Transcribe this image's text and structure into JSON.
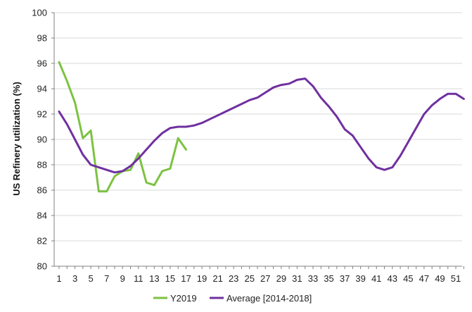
{
  "chart_data": {
    "type": "line",
    "title": "",
    "xlabel": "",
    "ylabel": "US Refinery utilization (%)",
    "ylim": [
      80,
      100
    ],
    "yticks": [
      "80",
      "82",
      "84",
      "86",
      "88",
      "90",
      "92",
      "94",
      "96",
      "98",
      "100"
    ],
    "xlim": [
      1,
      52
    ],
    "xticks": [
      "1",
      "3",
      "5",
      "7",
      "9",
      "11",
      "13",
      "15",
      "17",
      "19",
      "21",
      "23",
      "25",
      "27",
      "29",
      "31",
      "33",
      "35",
      "37",
      "39",
      "41",
      "43",
      "45",
      "47",
      "49",
      "51"
    ],
    "grid": "horizontal",
    "legend_position": "bottom",
    "series": [
      {
        "name": "Y2019",
        "color": "#7dc242",
        "x": [
          1,
          2,
          3,
          4,
          5,
          6,
          7,
          8,
          9,
          10,
          11,
          12,
          13,
          14,
          15,
          16,
          17
        ],
        "values": [
          96.1,
          94.6,
          92.9,
          90.1,
          90.7,
          85.9,
          85.9,
          87.1,
          87.5,
          87.6,
          88.9,
          86.6,
          86.4,
          87.5,
          87.7,
          90.1,
          89.2
        ]
      },
      {
        "name": "Average [2014-2018]",
        "color": "#7030a0",
        "x": [
          1,
          2,
          3,
          4,
          5,
          6,
          7,
          8,
          9,
          10,
          11,
          12,
          13,
          14,
          15,
          16,
          17,
          18,
          19,
          20,
          21,
          22,
          23,
          24,
          25,
          26,
          27,
          28,
          29,
          30,
          31,
          32,
          33,
          34,
          35,
          36,
          37,
          38,
          39,
          40,
          41,
          42,
          43,
          44,
          45,
          46,
          47,
          48,
          49,
          50,
          51,
          52
        ],
        "values": [
          92.2,
          91.2,
          90.0,
          88.8,
          88.0,
          87.8,
          87.6,
          87.4,
          87.5,
          87.9,
          88.5,
          89.2,
          89.9,
          90.5,
          90.9,
          91.0,
          91.0,
          91.1,
          91.3,
          91.6,
          91.9,
          92.2,
          92.5,
          92.8,
          93.1,
          93.3,
          93.7,
          94.1,
          94.3,
          94.4,
          94.7,
          94.8,
          94.2,
          93.3,
          92.6,
          91.8,
          90.8,
          90.3,
          89.4,
          88.5,
          87.8,
          87.6,
          87.8,
          88.7,
          89.8,
          90.9,
          92.0,
          92.7,
          93.2,
          93.6,
          93.6,
          93.2
        ]
      }
    ]
  }
}
